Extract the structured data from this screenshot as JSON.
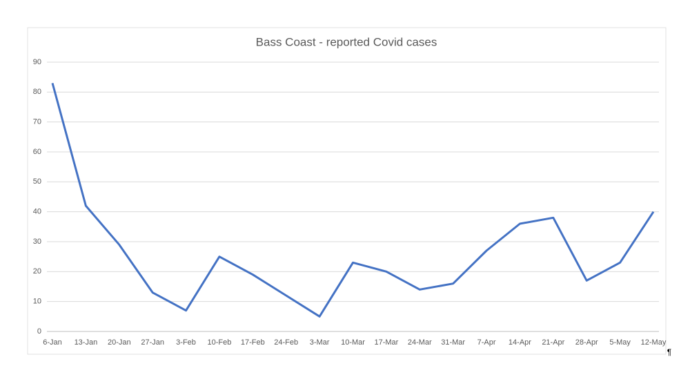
{
  "chart_data": {
    "type": "line",
    "title": "Bass Coast - reported Covid cases",
    "categories": [
      "6-Jan",
      "13-Jan",
      "20-Jan",
      "27-Jan",
      "3-Feb",
      "10-Feb",
      "17-Feb",
      "24-Feb",
      "3-Mar",
      "10-Mar",
      "17-Mar",
      "24-Mar",
      "31-Mar",
      "7-Apr",
      "14-Apr",
      "21-Apr",
      "28-Apr",
      "5-May",
      "12-May"
    ],
    "series": [
      {
        "name": "reported Covid cases",
        "color": "#4472c4",
        "values": [
          83,
          42,
          29,
          13,
          7,
          25,
          19,
          12,
          5,
          23,
          20,
          14,
          16,
          27,
          36,
          38,
          17,
          23,
          40
        ]
      }
    ],
    "ylim": [
      0,
      90
    ],
    "yticks": [
      0,
      10,
      20,
      30,
      40,
      50,
      60,
      70,
      80,
      90
    ],
    "grid": true,
    "mark": "¶"
  }
}
